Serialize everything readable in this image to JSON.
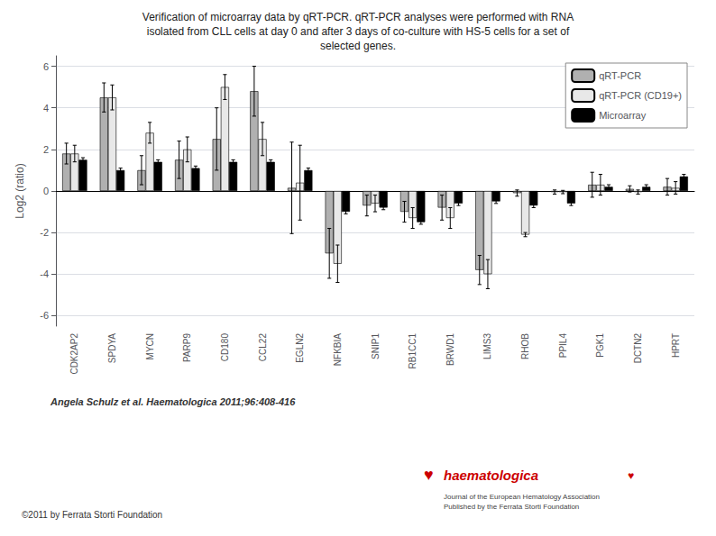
{
  "chart_data": {
    "type": "bar",
    "title": "Verification of microarray data by qRT-PCR. qRT-PCR analyses were performed with RNA\nisolated from CLL cells at day 0 and after 3 days of co-culture with HS-5 cells for a set of\nselected genes.",
    "ylabel": "Log2 (ratio)",
    "categories": [
      "CDK2AP2",
      "SPDYA",
      "MYCN",
      "PARP9",
      "CD180",
      "CCL22",
      "EGLN2",
      "NFKBIA",
      "SNIP1",
      "RB1CC1",
      "BRWD1",
      "LIMS3",
      "RHOB",
      "PPIL4",
      "PGK1",
      "DCTN2",
      "HPRT"
    ],
    "series": [
      {
        "name": "qRT-PCR",
        "color": "#b0b0b0",
        "values": [
          1.8,
          4.5,
          1.0,
          1.5,
          2.5,
          4.8,
          0.15,
          -3.0,
          -0.7,
          -1.0,
          -0.8,
          -3.8,
          -0.1,
          -0.05,
          0.3,
          0.1,
          0.2
        ],
        "errors": [
          0.5,
          0.7,
          0.7,
          0.9,
          1.5,
          1.2,
          2.2,
          1.2,
          0.5,
          0.5,
          0.6,
          0.7,
          0.15,
          0.1,
          0.6,
          0.15,
          0.4
        ]
      },
      {
        "name": "qRT-PCR (CD19+)",
        "color": "#e8e8e8",
        "values": [
          1.8,
          4.5,
          2.8,
          2.0,
          5.0,
          2.5,
          0.4,
          -3.5,
          -0.6,
          -1.3,
          -1.3,
          -4.0,
          -2.1,
          -0.05,
          0.3,
          -0.05,
          0.15
        ],
        "errors": [
          0.4,
          0.6,
          0.5,
          0.6,
          0.6,
          0.8,
          1.8,
          0.9,
          0.4,
          0.5,
          0.5,
          0.7,
          0.1,
          0.08,
          0.5,
          0.1,
          0.3
        ]
      },
      {
        "name": "Microarray",
        "color": "#000000",
        "values": [
          1.5,
          1.0,
          1.4,
          1.1,
          1.4,
          1.4,
          1.0,
          -1.0,
          -0.8,
          -1.5,
          -0.6,
          -0.5,
          -0.7,
          -0.6,
          0.2,
          0.2,
          0.7
        ],
        "errors": [
          0.1,
          0.1,
          0.1,
          0.1,
          0.1,
          0.1,
          0.1,
          0.1,
          0.1,
          0.1,
          0.1,
          0.1,
          0.1,
          0.1,
          0.1,
          0.1,
          0.1
        ]
      }
    ],
    "ylim": [
      -6.5,
      6.5
    ],
    "yticks": [
      -6,
      -4,
      -2,
      0,
      2,
      4,
      6
    ],
    "grid": true,
    "legend": "upper right",
    "annotations": [
      {
        "text": "Angela Schulz et al. Haematologica 2011;96:408-416"
      },
      {
        "text": "©2011 by Ferrata Storti Foundation"
      },
      {
        "text": "♥",
        "color": "#cc0000"
      },
      {
        "text": "haematologica",
        "color": "#cc0000"
      },
      {
        "text": "♥",
        "color": "#cc0000"
      },
      {
        "text": "Journal of the European Hematology Association\nPublished by the Ferrata Storti Foundation",
        "color": "#444444"
      }
    ]
  }
}
